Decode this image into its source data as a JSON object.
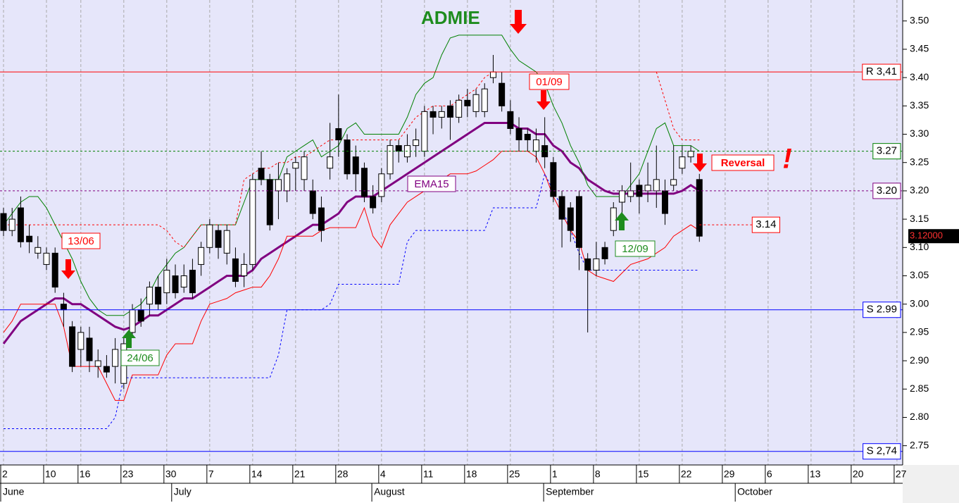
{
  "chart_data": {
    "type": "candlestick",
    "title": "ADMIE",
    "ylim": [
      2.716,
      3.537
    ],
    "yticks": [
      2.75,
      {
        "value": 2.8,
        "label": "2.80"
      },
      2.85,
      {
        "value": 2.9,
        "label": "2.90"
      },
      2.95,
      {
        "value": 3.0,
        "label": "3.00"
      },
      3.05,
      {
        "value": 3.1,
        "label": "3.10"
      },
      3.15,
      {
        "value": 3.2,
        "label": "3.20"
      },
      3.25,
      {
        "value": 3.3,
        "label": "3.30"
      },
      3.35,
      {
        "value": 3.4,
        "label": "3.40"
      },
      3.45,
      {
        "value": 3.5,
        "label": "3.50"
      }
    ],
    "xlim": [
      -0.41,
      104.5
    ],
    "xticks": [
      {
        "value": 0,
        "label": "2"
      },
      {
        "value": 5,
        "label": "10"
      },
      {
        "value": 9,
        "label": "16"
      },
      {
        "value": 14,
        "label": "23"
      },
      {
        "value": 19,
        "label": "30"
      },
      {
        "value": 24,
        "label": "7"
      },
      {
        "value": 29,
        "label": "14"
      },
      {
        "value": 34,
        "label": "21"
      },
      {
        "value": 39,
        "label": "28"
      },
      {
        "value": 44,
        "label": "4"
      },
      {
        "value": 49,
        "label": "11"
      },
      {
        "value": 54,
        "label": "18"
      },
      {
        "value": 59,
        "label": "25"
      },
      {
        "value": 64,
        "label": "1"
      },
      {
        "value": 69,
        "label": "8"
      },
      {
        "value": 74,
        "label": "15"
      },
      {
        "value": 79,
        "label": "22"
      },
      {
        "value": 84,
        "label": "29"
      },
      {
        "value": 89,
        "label": "6"
      },
      {
        "value": 94,
        "label": "13"
      },
      {
        "value": 99,
        "label": "20"
      },
      {
        "value": 104,
        "label": "27"
      }
    ],
    "month_ticks": [
      {
        "value": 0,
        "label": "June"
      },
      {
        "value": 19.9,
        "label": "July"
      },
      {
        "value": 43.2,
        "label": "August"
      },
      {
        "value": 63.2,
        "label": "September"
      },
      {
        "value": 85.5,
        "label": "October"
      }
    ],
    "grid": true,
    "candles": {
      "open": [
        3.16,
        3.13,
        3.17,
        3.12,
        3.09,
        3.07,
        3.09,
        3.0,
        2.96,
        2.92,
        2.94,
        2.89,
        2.89,
        2.89,
        2.86,
        2.95,
        2.99,
        3.0,
        3.03,
        3.02,
        3.05,
        3.03,
        3.06,
        3.07,
        3.1,
        3.13,
        3.09,
        3.08,
        3.05,
        3.07,
        3.24,
        3.22,
        3.2,
        3.2,
        3.24,
        3.22,
        3.2,
        3.17,
        3.24,
        3.31,
        3.29,
        3.26,
        3.24,
        3.19,
        3.19,
        3.23,
        3.28,
        3.26,
        3.28,
        3.27,
        3.34,
        3.33,
        3.35,
        3.33,
        3.36,
        3.34,
        3.34,
        3.4,
        3.39,
        3.34,
        3.31,
        3.3,
        3.27,
        3.28,
        3.25,
        3.19,
        3.17,
        3.19,
        3.08,
        3.06,
        3.1,
        3.13,
        3.18,
        3.19,
        3.21,
        3.2,
        3.2,
        3.2,
        3.21,
        3.24,
        3.26,
        3.22
      ],
      "high": [
        3.17,
        3.17,
        3.19,
        3.14,
        3.12,
        3.1,
        3.1,
        3.02,
        2.97,
        2.96,
        2.96,
        2.92,
        2.91,
        2.94,
        2.94,
        3.0,
        3.01,
        3.04,
        3.05,
        3.08,
        3.07,
        3.07,
        3.08,
        3.11,
        3.15,
        3.14,
        3.14,
        3.1,
        3.09,
        3.23,
        3.27,
        3.23,
        3.25,
        3.24,
        3.26,
        3.27,
        3.22,
        3.19,
        3.32,
        3.37,
        3.3,
        3.28,
        3.25,
        3.21,
        3.24,
        3.29,
        3.29,
        3.3,
        3.31,
        3.35,
        3.35,
        3.35,
        3.36,
        3.37,
        3.38,
        3.38,
        3.39,
        3.44,
        3.41,
        3.36,
        3.33,
        3.31,
        3.31,
        3.33,
        3.26,
        3.2,
        3.18,
        3.2,
        3.09,
        3.11,
        3.11,
        3.18,
        3.21,
        3.25,
        3.22,
        3.25,
        3.28,
        3.22,
        3.28,
        3.28,
        3.28,
        3.23
      ],
      "low": [
        3.12,
        3.12,
        3.1,
        3.09,
        3.08,
        3.06,
        3.02,
        2.96,
        2.88,
        2.89,
        2.88,
        2.87,
        2.87,
        2.86,
        2.85,
        2.94,
        2.96,
        2.98,
        2.99,
        3.0,
        3.01,
        3.02,
        3.01,
        3.05,
        3.09,
        3.08,
        3.07,
        3.03,
        3.03,
        3.06,
        3.21,
        3.13,
        3.15,
        3.18,
        3.2,
        3.2,
        3.15,
        3.11,
        3.22,
        3.26,
        3.22,
        3.2,
        3.18,
        3.16,
        3.18,
        3.22,
        3.25,
        3.25,
        3.26,
        3.26,
        3.3,
        3.31,
        3.29,
        3.32,
        3.33,
        3.33,
        3.33,
        3.39,
        3.34,
        3.3,
        3.27,
        3.27,
        3.25,
        3.24,
        3.18,
        3.1,
        3.11,
        3.06,
        2.95,
        3.05,
        3.07,
        3.12,
        3.16,
        3.18,
        3.16,
        3.18,
        3.17,
        3.14,
        3.2,
        3.23,
        3.25,
        3.11
      ],
      "close": [
        3.13,
        3.15,
        3.11,
        3.11,
        3.1,
        3.09,
        3.03,
        2.99,
        2.89,
        2.95,
        2.9,
        2.9,
        2.88,
        2.92,
        2.93,
        2.99,
        2.97,
        3.03,
        3.0,
        3.06,
        3.02,
        3.05,
        3.02,
        3.1,
        3.14,
        3.1,
        3.13,
        3.04,
        3.07,
        3.22,
        3.22,
        3.14,
        3.22,
        3.23,
        3.25,
        3.26,
        3.16,
        3.13,
        3.26,
        3.29,
        3.23,
        3.23,
        3.19,
        3.17,
        3.23,
        3.28,
        3.27,
        3.28,
        3.29,
        3.34,
        3.33,
        3.34,
        3.33,
        3.36,
        3.35,
        3.37,
        3.38,
        3.41,
        3.35,
        3.31,
        3.29,
        3.29,
        3.29,
        3.26,
        3.19,
        3.15,
        3.13,
        3.1,
        3.06,
        3.08,
        3.08,
        3.17,
        3.2,
        3.2,
        3.19,
        3.21,
        3.22,
        3.16,
        3.22,
        3.26,
        3.27,
        3.12
      ]
    },
    "series": [
      {
        "name": "EMA15",
        "color": "#800080",
        "width": 3,
        "dash": false,
        "values": [
          2.93,
          2.95,
          2.97,
          2.98,
          2.99,
          3.0,
          3.01,
          3.01,
          3.0,
          3.0,
          2.99,
          2.98,
          2.97,
          2.96,
          2.955,
          2.96,
          2.97,
          2.98,
          2.98,
          2.99,
          3.0,
          3.01,
          3.01,
          3.02,
          3.03,
          3.04,
          3.05,
          3.05,
          3.05,
          3.06,
          3.08,
          3.09,
          3.1,
          3.11,
          3.12,
          3.13,
          3.14,
          3.14,
          3.15,
          3.16,
          3.18,
          3.19,
          3.19,
          3.19,
          3.2,
          3.21,
          3.22,
          3.23,
          3.24,
          3.25,
          3.26,
          3.27,
          3.28,
          3.29,
          3.3,
          3.31,
          3.32,
          3.32,
          3.32,
          3.32,
          3.31,
          3.31,
          3.3,
          3.3,
          3.28,
          3.27,
          3.25,
          3.24,
          3.22,
          3.21,
          3.2,
          3.195,
          3.195,
          3.195,
          3.195,
          3.195,
          3.195,
          3.195,
          3.195,
          3.2,
          3.21,
          3.2
        ]
      },
      {
        "color": "#008000",
        "width": 1,
        "dash": false,
        "values": [
          3.14,
          3.16,
          3.18,
          3.19,
          3.19,
          3.17,
          3.14,
          3.11,
          3.08,
          3.04,
          3.01,
          2.99,
          2.98,
          2.98,
          2.98,
          2.99,
          3.0,
          3.02,
          3.05,
          3.07,
          3.09,
          3.1,
          3.12,
          3.14,
          3.14,
          3.14,
          3.14,
          3.14,
          3.18,
          3.22,
          3.22,
          3.22,
          3.22,
          3.26,
          3.27,
          3.28,
          3.29,
          3.26,
          3.27,
          3.28,
          3.31,
          3.32,
          3.3,
          3.3,
          3.3,
          3.3,
          3.3,
          3.33,
          3.37,
          3.39,
          3.4,
          3.44,
          3.47,
          3.475,
          3.475,
          3.475,
          3.475,
          3.475,
          3.475,
          3.45,
          3.43,
          3.42,
          3.41,
          3.39,
          3.35,
          3.32,
          3.28,
          3.25,
          3.21,
          3.19,
          3.19,
          3.19,
          3.19,
          3.21,
          3.23,
          3.27,
          3.31,
          3.32,
          3.28,
          3.28,
          3.28,
          3.27
        ]
      },
      {
        "color": "#ff0000",
        "width": 1,
        "dash": false,
        "values": [
          2.95,
          2.97,
          3.0,
          3.0,
          3.0,
          3.0,
          3.0,
          2.96,
          2.89,
          2.89,
          2.89,
          2.89,
          2.86,
          2.83,
          2.83,
          2.875,
          2.875,
          2.875,
          2.875,
          2.91,
          2.93,
          2.93,
          2.93,
          2.97,
          3.0,
          3.005,
          3.01,
          3.02,
          3.025,
          3.03,
          3.03,
          3.05,
          3.08,
          3.12,
          3.12,
          3.12,
          3.12,
          3.13,
          3.135,
          3.135,
          3.135,
          3.135,
          3.17,
          3.12,
          3.1,
          3.14,
          3.16,
          3.18,
          3.19,
          3.2,
          3.2,
          3.22,
          3.23,
          3.23,
          3.23,
          3.235,
          3.245,
          3.255,
          3.27,
          3.27,
          3.27,
          3.27,
          3.26,
          3.23,
          3.19,
          3.16,
          3.13,
          3.11,
          3.06,
          3.05,
          3.045,
          3.04,
          3.055,
          3.07,
          3.075,
          3.08,
          3.09,
          3.1,
          3.12,
          3.13,
          3.14,
          3.13
        ]
      },
      {
        "color": "#ff0000",
        "width": 1,
        "dash": true,
        "values": [
          3.14,
          3.14,
          3.14,
          3.14,
          3.14,
          3.14,
          3.14,
          3.14,
          3.14,
          3.14,
          3.14,
          3.14,
          3.14,
          3.14,
          3.14,
          3.14,
          3.14,
          3.14,
          3.14,
          3.13,
          3.11,
          3.1,
          3.12,
          3.14,
          3.14,
          3.14,
          3.14,
          3.14,
          3.22,
          3.23,
          3.24,
          3.24,
          3.25,
          3.25,
          3.26,
          3.26,
          3.27,
          3.28,
          3.29,
          3.29,
          3.29,
          3.29,
          3.29,
          3.29,
          3.29,
          3.29,
          3.29,
          3.31,
          3.33,
          3.34,
          3.35,
          3.35,
          3.35,
          3.36,
          3.37,
          3.38,
          3.4,
          3.41,
          null,
          null,
          null,
          null,
          null,
          null,
          null,
          null,
          null,
          null,
          null,
          null,
          null,
          null,
          null,
          null,
          null,
          null,
          3.41,
          3.36,
          3.31,
          3.29,
          3.29,
          3.29
        ]
      },
      {
        "color": "#0000ff",
        "width": 1,
        "dash": true,
        "values": [
          2.78,
          2.78,
          2.78,
          2.78,
          2.78,
          2.78,
          2.78,
          2.78,
          2.78,
          2.78,
          2.78,
          2.78,
          2.78,
          2.8,
          2.87,
          2.87,
          2.87,
          2.87,
          2.87,
          2.87,
          2.87,
          2.87,
          2.87,
          2.87,
          2.87,
          2.87,
          2.87,
          2.87,
          2.87,
          2.87,
          2.87,
          2.87,
          2.91,
          2.99,
          2.99,
          2.99,
          2.99,
          2.99,
          3.0,
          3.035,
          3.035,
          3.035,
          3.035,
          3.035,
          3.035,
          3.035,
          3.035,
          3.11,
          3.13,
          3.13,
          3.13,
          3.13,
          3.13,
          3.13,
          3.13,
          3.13,
          3.13,
          3.17,
          3.17,
          3.17,
          3.17,
          3.17,
          3.17,
          3.23,
          3.2,
          3.17,
          3.13,
          3.09,
          3.06,
          3.06,
          3.06,
          3.06,
          3.06,
          3.06,
          3.06,
          3.06,
          3.06,
          3.06,
          3.06,
          3.06,
          3.06,
          3.06
        ]
      }
    ],
    "levels": [
      {
        "value": 3.41,
        "label": "R 3,41",
        "color": "#ff0000",
        "dash": false
      },
      {
        "value": 3.27,
        "label": "3.27",
        "color": "#008000",
        "dash": true
      },
      {
        "value": 3.2,
        "label": "3.20",
        "color": "#800080",
        "dash": true
      },
      {
        "value": 2.99,
        "label": "S 2.99",
        "color": "#0000ff",
        "dash": false
      },
      {
        "value": 2.74,
        "label": "S 2,74",
        "color": "#0000ff",
        "dash": false
      }
    ],
    "target": {
      "value": 3.14,
      "label": "3.14",
      "color": "#ff0000"
    },
    "last": {
      "value": 3.12,
      "label": "3.12000"
    },
    "annotations": {
      "a1": "13/06",
      "a2": "24/06",
      "a3": "01/09",
      "a4": "12/09",
      "a5": "Reversal",
      "a6": "!"
    }
  }
}
